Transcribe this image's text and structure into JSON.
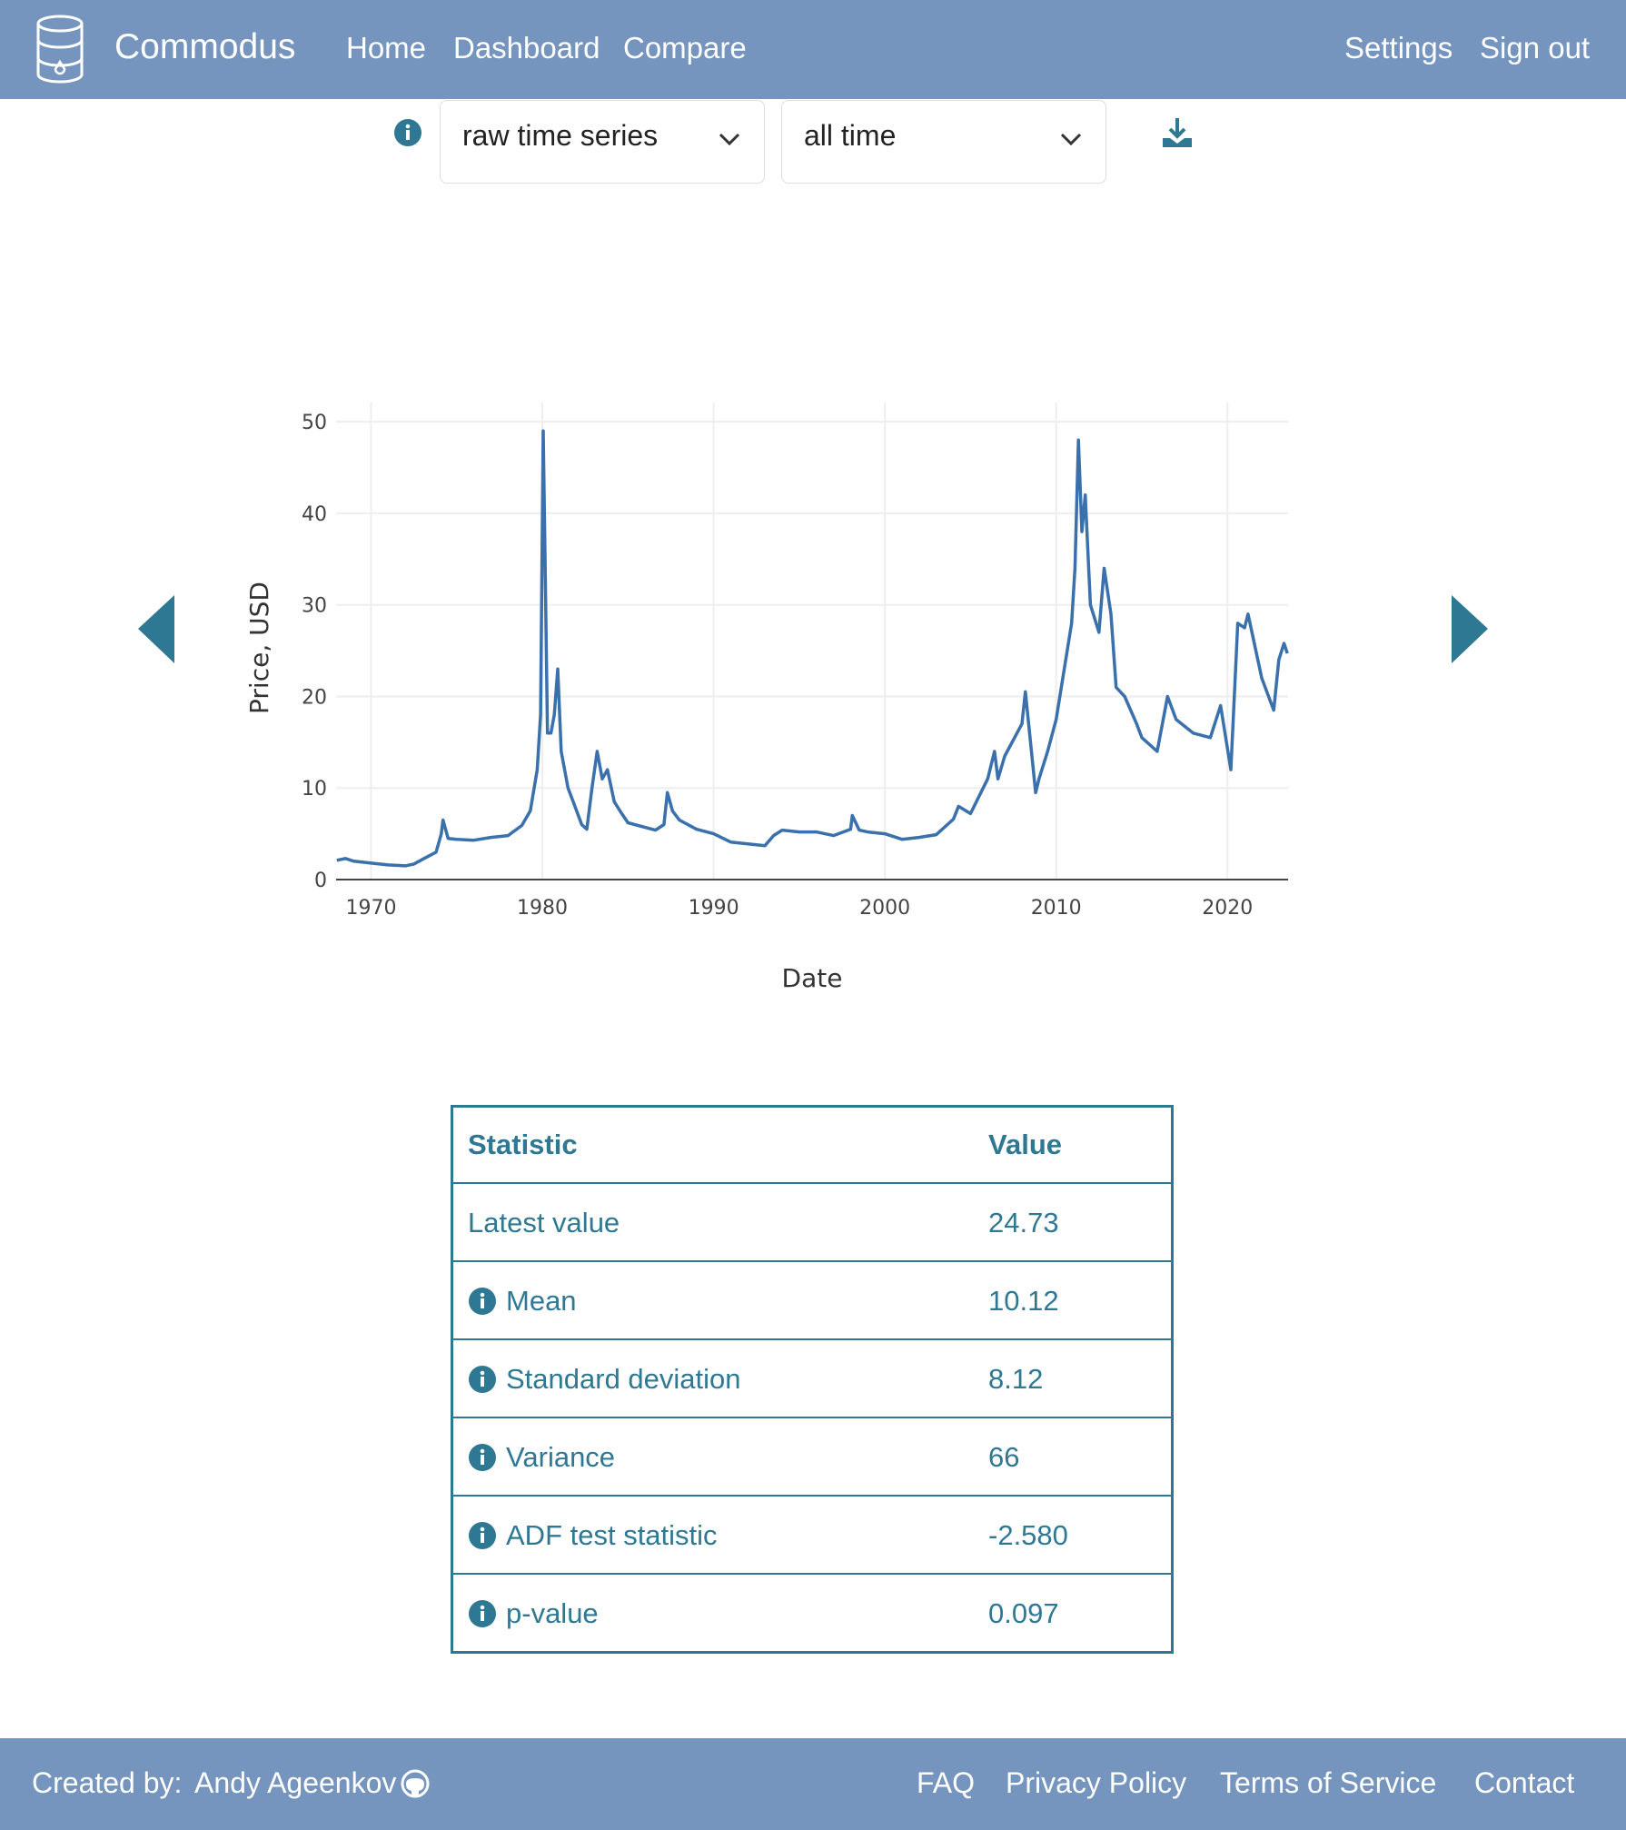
{
  "nav": {
    "brand": "Commodus",
    "links": [
      "Home",
      "Dashboard",
      "Compare"
    ],
    "right_links": [
      "Settings",
      "Sign out"
    ]
  },
  "controls": {
    "transform": "raw time series",
    "period": "all time"
  },
  "chart_data": {
    "type": "line",
    "x_label": "Date",
    "y_label": "Price, USD",
    "x": [
      1968.0,
      1968.5,
      1969,
      1970,
      1971,
      1972,
      1972.5,
      1973,
      1973.8,
      1974.1,
      1974.2,
      1974.5,
      1975,
      1976,
      1977,
      1978,
      1978.8,
      1979.3,
      1979.7,
      1979.9,
      1980.05,
      1980.15,
      1980.3,
      1980.5,
      1980.7,
      1980.9,
      1981.1,
      1981.5,
      1981.8,
      1982.3,
      1982.6,
      1982.9,
      1983.2,
      1983.5,
      1983.8,
      1984.2,
      1984.6,
      1985,
      1986,
      1986.6,
      1987.1,
      1987.3,
      1987.6,
      1988,
      1989,
      1990,
      1991,
      1992,
      1993,
      1993.5,
      1994,
      1995,
      1996,
      1997,
      1998,
      1998.1,
      1998.5,
      1999,
      2000,
      2001,
      2002,
      2003,
      2004,
      2004.3,
      2005,
      2006,
      2006.4,
      2006.6,
      2007,
      2008,
      2008.2,
      2008.8,
      2009,
      2009.5,
      2010,
      2010.9,
      2011.1,
      2011.3,
      2011.5,
      2011.7,
      2012,
      2012.5,
      2012.8,
      2013.2,
      2013.5,
      2014,
      2014.7,
      2015,
      2015.9,
      2016.5,
      2017,
      2018,
      2019,
      2019.6,
      2020.2,
      2020.6,
      2021,
      2021.2,
      2022,
      2022.7,
      2023,
      2023.3,
      2023.5
    ],
    "series": [
      {
        "name": "Price",
        "color": "#3a70ac",
        "values": [
          2.1,
          2.3,
          2.0,
          1.8,
          1.6,
          1.5,
          1.7,
          2.2,
          3.0,
          5.0,
          6.5,
          4.5,
          4.4,
          4.3,
          4.6,
          4.8,
          5.9,
          7.5,
          12,
          18,
          49,
          36,
          16,
          16,
          18,
          23,
          14,
          10,
          8.5,
          6,
          5.5,
          10,
          14,
          11,
          12,
          8.5,
          7.3,
          6.2,
          5.7,
          5.4,
          6,
          9.5,
          7.5,
          6.5,
          5.5,
          5.0,
          4.1,
          3.9,
          3.7,
          4.8,
          5.4,
          5.2,
          5.2,
          4.8,
          5.5,
          7,
          5.4,
          5.2,
          5.0,
          4.4,
          4.6,
          4.9,
          6.6,
          8,
          7.2,
          11,
          14,
          11,
          13.5,
          17,
          20.5,
          9.5,
          11,
          14,
          17.5,
          28,
          34,
          48,
          38,
          42,
          30,
          27,
          34,
          29,
          21,
          20,
          17,
          15.5,
          14,
          20,
          17.5,
          16,
          15.5,
          19,
          12,
          28,
          27.5,
          29,
          22,
          18.5,
          24,
          25.8,
          24.7
        ]
      }
    ],
    "xlim": [
      1967.96,
      2023.54
    ],
    "ylim": [
      0,
      52.1
    ],
    "xticks": [
      1970,
      1980,
      1990,
      2000,
      2010,
      2020
    ],
    "yticks": [
      0,
      10,
      20,
      30,
      40,
      50
    ],
    "grid": true
  },
  "table": {
    "header": [
      "Statistic",
      "Value"
    ],
    "rows": [
      [
        "Latest value",
        "24.73"
      ],
      [
        "Mean",
        "10.12"
      ],
      [
        "Standard deviation",
        "8.12"
      ],
      [
        "Variance",
        "66"
      ],
      [
        "ADF test statistic",
        "-2.580"
      ],
      [
        "p-value",
        "0.097"
      ]
    ]
  },
  "footer": {
    "created_by": "Created by:",
    "author": "Andy Ageenkov",
    "links": [
      "FAQ",
      "Privacy Policy",
      "Terms of Service",
      "Contact"
    ]
  }
}
